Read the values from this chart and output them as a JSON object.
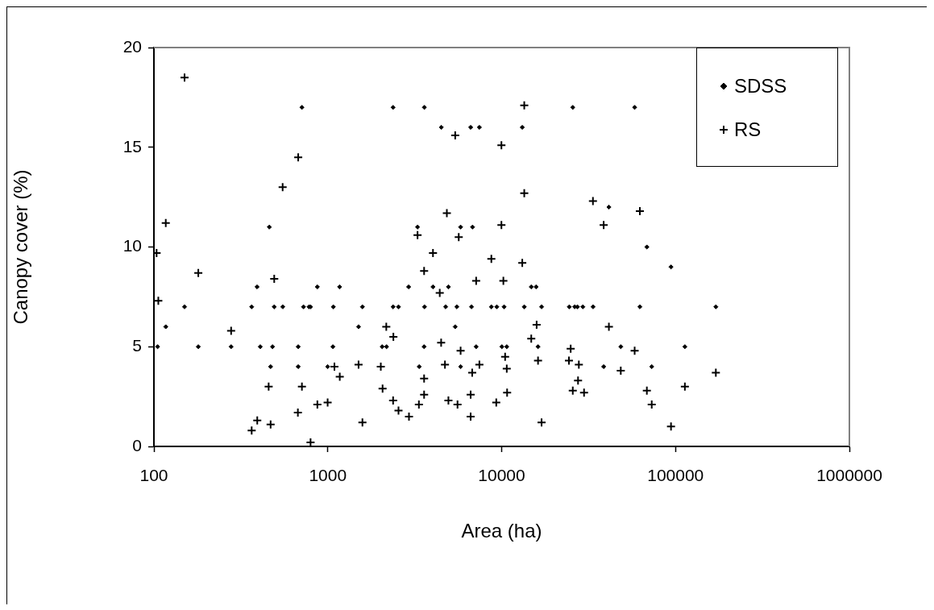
{
  "chart_data": {
    "type": "scatter",
    "xlabel": "Area (ha)",
    "ylabel": "Canopy cover (%)",
    "log": "x",
    "xlim": [
      100,
      1000000
    ],
    "xticks": [
      100,
      1000,
      10000,
      100000,
      1000000
    ],
    "ylim": [
      0,
      20
    ],
    "yticks": [
      0,
      5,
      10,
      15,
      20
    ],
    "grid": false,
    "legend": "top right",
    "series": [
      {
        "name": "SDSS",
        "color": "#000000",
        "marker": "diamond",
        "x": [
          105,
          117,
          150,
          180,
          278,
          365,
          392,
          409,
          461,
          469,
          481,
          492,
          551,
          676,
          676,
          710,
          725,
          796,
          871,
          998,
          1070,
          1076,
          1169,
          1503,
          1582,
          2055,
          2178,
          2375,
          2375,
          2551,
          2917,
          3283,
          3356,
          3581,
          3593,
          3600,
          4027,
          4498,
          4763,
          4941,
          5405,
          5524,
          5807,
          5807,
          6634,
          6708,
          6801,
          7135,
          7447,
          8724,
          9379,
          10030,
          10330,
          10700,
          13140,
          13490,
          14800,
          15780,
          16190,
          16970,
          24490,
          25650,
          26320,
          27280,
          29310,
          33560,
          38620,
          41390,
          48440,
          58200,
          62370,
          68420,
          72970,
          94200,
          113200,
          170600,
          780
        ],
        "values": [
          5,
          6,
          7,
          5,
          5,
          7,
          8,
          5,
          11,
          4,
          5,
          7,
          7,
          5,
          4,
          17,
          7,
          7,
          8,
          4,
          5,
          7,
          8,
          6,
          7,
          5,
          5,
          7,
          17,
          7,
          8,
          11,
          4,
          5,
          17,
          7,
          8,
          16,
          7,
          8,
          6,
          7,
          11,
          4,
          16,
          7,
          11,
          5,
          16,
          7,
          7,
          5,
          7,
          5,
          16,
          7,
          8,
          8,
          5,
          7,
          7,
          17,
          7,
          7,
          7,
          7,
          4,
          12,
          5,
          17,
          7,
          10,
          4,
          9,
          5,
          7,
          7
        ]
      },
      {
        "name": "RS",
        "color": "#000000",
        "marker": "cross",
        "x": [
          150,
          117,
          550,
          676,
          5405,
          4840,
          3283,
          5665,
          13490,
          9970,
          13490,
          9970,
          33500,
          38620,
          62370,
          103.6,
          180,
          106,
          492,
          278,
          4027,
          3581,
          8724,
          7135,
          4405,
          4487,
          5807,
          4720,
          7447,
          6770,
          2170,
          2384,
          1092,
          1503,
          2018,
          1172,
          457,
          710,
          2066,
          3581,
          3581,
          6634,
          2375,
          3342,
          4941,
          5573,
          9310,
          871,
          998,
          673,
          2551,
          2931,
          6634,
          1582,
          393,
          469,
          365,
          796,
          13140,
          10230,
          15890,
          14800,
          41390,
          10470,
          10700,
          16190,
          24950,
          24380,
          27800,
          27500,
          25650,
          29780,
          58200,
          48440,
          68420,
          72970,
          113200,
          170600,
          94200,
          10750,
          16970
        ],
        "values": [
          18.5,
          11.2,
          13,
          14.5,
          15.6,
          11.7,
          10.6,
          10.5,
          17.1,
          15.1,
          12.7,
          11.1,
          12.3,
          11.1,
          11.8,
          9.7,
          8.7,
          7.3,
          8.4,
          5.8,
          9.7,
          8.8,
          9.4,
          8.3,
          7.7,
          5.2,
          4.8,
          4.1,
          4.1,
          3.7,
          6,
          5.5,
          4,
          4.1,
          4,
          3.5,
          3,
          3,
          2.9,
          3.4,
          2.6,
          2.6,
          2.3,
          2.1,
          2.3,
          2.1,
          2.2,
          2.1,
          2.2,
          1.7,
          1.8,
          1.5,
          1.5,
          1.2,
          1.3,
          1.1,
          0.8,
          0.2,
          9.2,
          8.3,
          6.1,
          5.4,
          6,
          4.5,
          3.9,
          4.3,
          4.9,
          4.3,
          4.1,
          3.3,
          2.8,
          2.7,
          4.8,
          3.8,
          2.8,
          2.1,
          3,
          3.7,
          1,
          2.7,
          1.2
        ]
      }
    ]
  }
}
